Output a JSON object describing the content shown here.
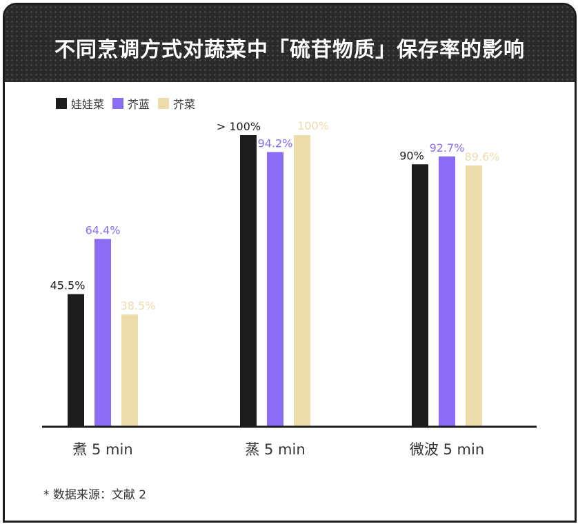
{
  "header": {
    "title": "不同烹调方式对蔬菜中「硫苷物质」保存率的影响"
  },
  "colors": {
    "series": [
      "#1c1c1c",
      "#8a6cf5",
      "#ecdcaa"
    ],
    "label": [
      "#1c1c1c",
      "#8a6cf5",
      "#ecdcaa"
    ]
  },
  "chart_data": {
    "type": "bar",
    "title": "",
    "categories": [
      "煮 5 min",
      "蒸 5 min",
      "微波 5 min"
    ],
    "series": [
      {
        "name": "娃娃菜",
        "values": [
          45.5,
          100,
          90
        ],
        "labels": [
          "45.5%",
          "> 100%",
          "90%"
        ]
      },
      {
        "name": "芥蓝",
        "values": [
          64.4,
          94.2,
          92.7
        ],
        "labels": [
          "64.4%",
          "94.2%",
          "92.7%"
        ]
      },
      {
        "name": "芥菜",
        "values": [
          38.5,
          100,
          89.6
        ],
        "labels": [
          "38.5%",
          "100%",
          "89.6%"
        ]
      }
    ],
    "xlabel": "",
    "ylabel": "",
    "ylim": [
      0,
      100
    ],
    "legend": "top-left",
    "grid": false
  },
  "footer": {
    "source": "* 数据来源：文献 2"
  }
}
